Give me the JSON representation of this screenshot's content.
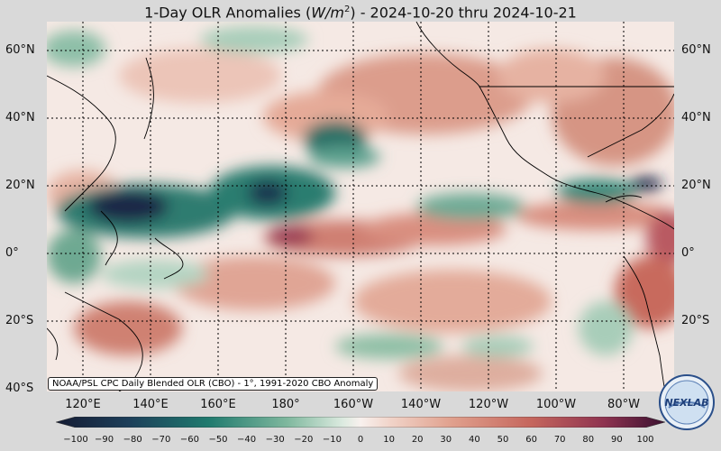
{
  "title_prefix": "1-Day OLR Anomalies (",
  "title_unit_main": "W/m",
  "title_unit_exp": "2",
  "title_suffix": ") - 2024-10-20 thru 2024-10-21",
  "lat_labels": [
    "60°N",
    "40°N",
    "20°N",
    "0°",
    "20°S",
    "40°S"
  ],
  "lon_labels": [
    "120°E",
    "140°E",
    "160°E",
    "180°",
    "160°W",
    "140°W",
    "120°W",
    "100°W",
    "80°W"
  ],
  "credit": "NOAA/PSL CPC Daily Blended OLR (CBO) - 1°, 1991-2020 CBO Anomaly",
  "logo_text": "NEXLAB",
  "colorbar_ticks": [
    "−100",
    "−90",
    "−80",
    "−70",
    "−60",
    "−50",
    "−40",
    "−30",
    "−20",
    "−10",
    "0",
    "10",
    "20",
    "30",
    "40",
    "50",
    "60",
    "70",
    "80",
    "90",
    "100"
  ],
  "colors": {
    "strong_negative": "#1a2747",
    "negative": "#1f7a6e",
    "weak_negative": "#9fc9b3",
    "neutral": "#f7eeea",
    "weak_positive": "#e8b7a6",
    "positive": "#c86a5d",
    "strong_positive": "#5e1d3e"
  }
}
